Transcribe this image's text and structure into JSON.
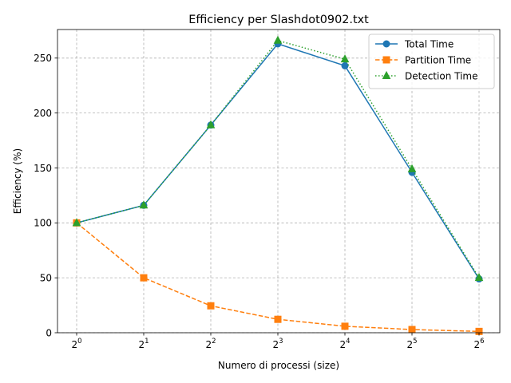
{
  "chart_data": {
    "type": "line",
    "title": "Efficiency per Slashdot0902.txt",
    "xlabel": "Numero di processi (size)",
    "ylabel": "Efficiency (%)",
    "x": [
      1,
      2,
      4,
      8,
      16,
      32,
      64
    ],
    "x_tick_labels": [
      {
        "base": "2",
        "exp": "0"
      },
      {
        "base": "2",
        "exp": "1"
      },
      {
        "base": "2",
        "exp": "2"
      },
      {
        "base": "2",
        "exp": "3"
      },
      {
        "base": "2",
        "exp": "4"
      },
      {
        "base": "2",
        "exp": "5"
      },
      {
        "base": "2",
        "exp": "6"
      }
    ],
    "x_scale": "log2",
    "y_ticks": [
      0,
      50,
      100,
      150,
      200,
      250
    ],
    "ylim": [
      0,
      276
    ],
    "grid": true,
    "legend_position": "top-right",
    "series": [
      {
        "name": "Total Time",
        "values": [
          100,
          116,
          189,
          263,
          243,
          146,
          49
        ],
        "color": "#1f77b4",
        "marker": "circle",
        "dash": "solid"
      },
      {
        "name": "Partition Time",
        "values": [
          100,
          50,
          24.5,
          12.2,
          5.9,
          2.9,
          1.2
        ],
        "color": "#ff7f0e",
        "marker": "square",
        "dash": "dashed"
      },
      {
        "name": "Detection Time",
        "values": [
          100,
          116,
          189,
          266,
          249,
          149,
          50
        ],
        "color": "#2ca02c",
        "marker": "triangle",
        "dash": "dotted"
      }
    ]
  }
}
